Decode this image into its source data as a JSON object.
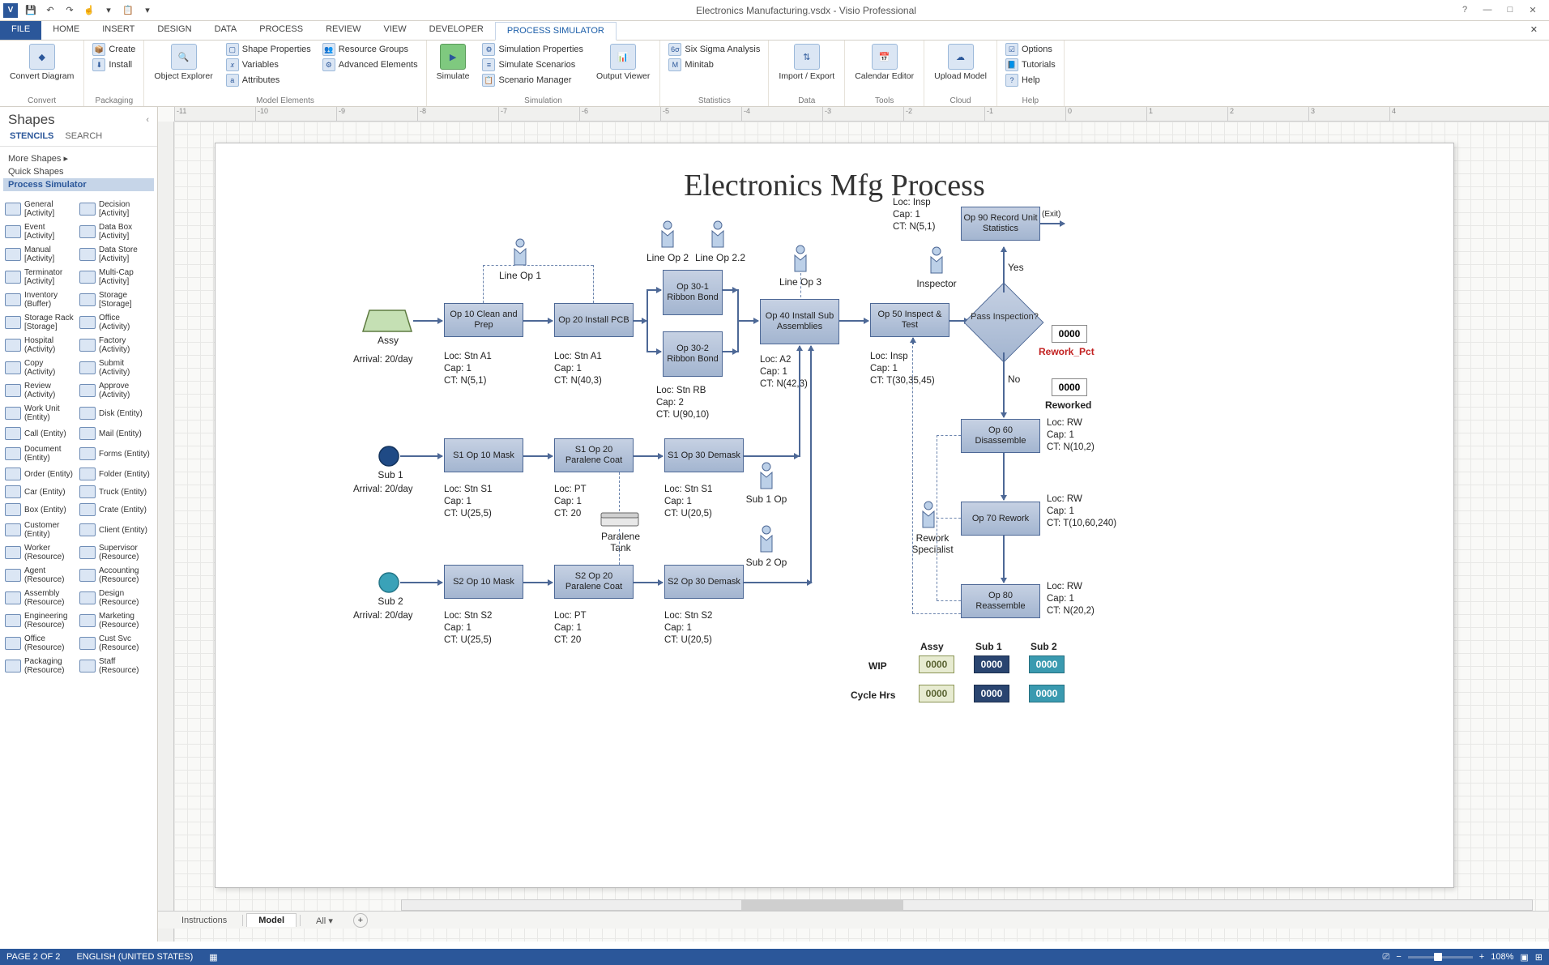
{
  "app": {
    "title": "Electronics Manufacturing.vsdx - Visio Professional",
    "icon_letter": "V"
  },
  "qat": {
    "save_label": "Save",
    "undo_label": "Undo",
    "redo_label": "Redo",
    "paste_label": "Paste"
  },
  "ribbon_tabs": {
    "file": "FILE",
    "home": "HOME",
    "insert": "INSERT",
    "design": "DESIGN",
    "data": "DATA",
    "process": "PROCESS",
    "review": "REVIEW",
    "view": "VIEW",
    "developer": "DEVELOPER",
    "process_simulator": "PROCESS SIMULATOR"
  },
  "ribbon": {
    "convert": {
      "convert_diagram": "Convert\nDiagram",
      "group": "Convert"
    },
    "packaging": {
      "create": "Create",
      "install": "Install",
      "group": "Packaging"
    },
    "model_elements": {
      "object_explorer": "Object\nExplorer",
      "shape_properties": "Shape Properties",
      "variables": "Variables",
      "attributes": "Attributes",
      "resource_groups": "Resource Groups",
      "advanced_elements": "Advanced Elements",
      "simulation_properties": "Simulation Properties",
      "simulate_scenarios": "Simulate Scenarios",
      "scenario_manager": "Scenario Manager",
      "group": "Model Elements"
    },
    "simulation": {
      "simulate": "Simulate",
      "output_viewer": "Output\nViewer",
      "group": "Simulation"
    },
    "statistics": {
      "six_sigma": "Six Sigma Analysis",
      "minitab": "Minitab",
      "group": "Statistics"
    },
    "data": {
      "import_export": "Import /\nExport",
      "group": "Data"
    },
    "tools": {
      "calendar_editor": "Calendar\nEditor",
      "group": "Tools"
    },
    "cloud": {
      "upload_model": "Upload\nModel",
      "group": "Cloud"
    },
    "help": {
      "options": "Options",
      "tutorials": "Tutorials",
      "help": "Help",
      "group": "Help"
    }
  },
  "shapes_panel": {
    "title": "Shapes",
    "tabs": {
      "stencils": "STENCILS",
      "search": "SEARCH"
    },
    "links": {
      "more_shapes": "More Shapes",
      "quick_shapes": "Quick Shapes",
      "process_simulator": "Process Simulator"
    },
    "shapes": [
      [
        "General [Activity]",
        "Decision [Activity]"
      ],
      [
        "Event [Activity]",
        "Data Box [Activity]"
      ],
      [
        "Manual [Activity]",
        "Data Store [Activity]"
      ],
      [
        "Terminator [Activity]",
        "Multi-Cap [Activity]"
      ],
      [
        "Inventory (Buffer)",
        "Storage [Storage]"
      ],
      [
        "Storage Rack [Storage]",
        "Office (Activity)"
      ],
      [
        "Hospital (Activity)",
        "Factory (Activity)"
      ],
      [
        "Copy (Activity)",
        "Submit (Activity)"
      ],
      [
        "Review (Activity)",
        "Approve (Activity)"
      ],
      [
        "Work Unit (Entity)",
        "Disk (Entity)"
      ],
      [
        "Call (Entity)",
        "Mail (Entity)"
      ],
      [
        "Document (Entity)",
        "Forms (Entity)"
      ],
      [
        "Order (Entity)",
        "Folder (Entity)"
      ],
      [
        "Car (Entity)",
        "Truck (Entity)"
      ],
      [
        "Box (Entity)",
        "Crate (Entity)"
      ],
      [
        "Customer (Entity)",
        "Client (Entity)"
      ],
      [
        "Worker (Resource)",
        "Supervisor (Resource)"
      ],
      [
        "Agent (Resource)",
        "Accounting (Resource)"
      ],
      [
        "Assembly (Resource)",
        "Design (Resource)"
      ],
      [
        "Engineering (Resource)",
        "Marketing (Resource)"
      ],
      [
        "Office (Resource)",
        "Cust Svc (Resource)"
      ],
      [
        "Packaging (Resource)",
        "Staff (Resource)"
      ]
    ]
  },
  "diagram": {
    "title": "Electronics Mfg Process",
    "assy": {
      "label": "Assy",
      "arrival": "Arrival: 20/day"
    },
    "sub1": {
      "label": "Sub 1",
      "arrival": "Arrival: 20/day"
    },
    "sub2": {
      "label": "Sub 2",
      "arrival": "Arrival: 20/day"
    },
    "op10": {
      "name": "Op 10\nClean and Prep",
      "info": "Loc: Stn A1\nCap: 1\nCT: N(5,1)"
    },
    "op20": {
      "name": "Op 20\nInstall PCB",
      "info": "Loc: Stn A1\nCap: 1\nCT: N(40,3)"
    },
    "op30_1": {
      "name": "Op 30-1\nRibbon\nBond"
    },
    "op30_2": {
      "name": "Op 30-2\nRibbon\nBond",
      "info": "Loc: Stn RB\nCap: 2\nCT: U(90,10)"
    },
    "op40": {
      "name": "Op 40\nInstall Sub\nAssemblies",
      "info": "Loc: A2\nCap: 1\nCT: N(42,3)"
    },
    "op50": {
      "name": "Op 50\nInspect & Test",
      "info": "Loc: Insp\nCap: 1\nCT: T(30,35,45)"
    },
    "op60": {
      "name": "Op 60\nDisassemble",
      "info": "Loc: RW\nCap: 1\nCT: N(10,2)"
    },
    "op70": {
      "name": "Op 70\nRework",
      "info": "Loc: RW\nCap: 1\nCT: T(10,60,240)"
    },
    "op80": {
      "name": "Op 80\nReassemble",
      "info": "Loc: RW\nCap: 1\nCT: N(20,2)"
    },
    "op90": {
      "name": "Op 90 Record\nUnit Statistics",
      "info": "Loc: Insp\nCap: 1\nCT: N(5,1)"
    },
    "s1_op10": {
      "name": "S1 Op 10\nMask",
      "info": "Loc: Stn S1\nCap: 1\nCT: U(25,5)"
    },
    "s1_op20": {
      "name": "S1 Op 20\nParalene Coat",
      "info": "Loc: PT\nCap: 1\nCT: 20"
    },
    "s1_op30": {
      "name": "S1 Op 30\nDemask",
      "info": "Loc: Stn S1\nCap: 1\nCT: U(20,5)"
    },
    "s2_op10": {
      "name": "S2 Op 10\nMask",
      "info": "Loc: Stn S2\nCap: 1\nCT: U(25,5)"
    },
    "s2_op20": {
      "name": "S2 Op 20\nParalene Coat",
      "info": "Loc: PT\nCap: 1\nCT: 20"
    },
    "s2_op30": {
      "name": "S2 Op 30\nDemask",
      "info": "Loc: Stn S2\nCap: 1\nCT: U(20,5)"
    },
    "decision": {
      "label": "Pass\nInspection?",
      "yes": "Yes",
      "no": "No"
    },
    "operators": {
      "line_op1": "Line Op 1",
      "line_op2": "Line Op 2",
      "line_op22": "Line Op 2.2",
      "line_op3": "Line Op 3",
      "inspector": "Inspector",
      "sub1_op": "Sub 1 Op",
      "sub2_op": "Sub 2 Op",
      "rework_specialist": "Rework\nSpecialist",
      "paralene_tank": "Paralene\nTank"
    },
    "exit_label": "(Exit)",
    "counters": {
      "rework_pct": {
        "value": "0000",
        "label": "Rework_Pct"
      },
      "reworked": {
        "value": "0000",
        "label": "Reworked"
      },
      "table": {
        "row1": "WIP",
        "row2": "Cycle Hrs",
        "cols": [
          "Assy",
          "Sub 1",
          "Sub 2"
        ],
        "values": [
          [
            "0000",
            "0000",
            "0000"
          ],
          [
            "0000",
            "0000",
            "0000"
          ]
        ]
      }
    }
  },
  "bottom_tabs": {
    "instructions": "Instructions",
    "model": "Model",
    "all": "All"
  },
  "status": {
    "page": "PAGE 2 OF 2",
    "lang": "ENGLISH (UNITED STATES)",
    "zoom": "108%"
  }
}
